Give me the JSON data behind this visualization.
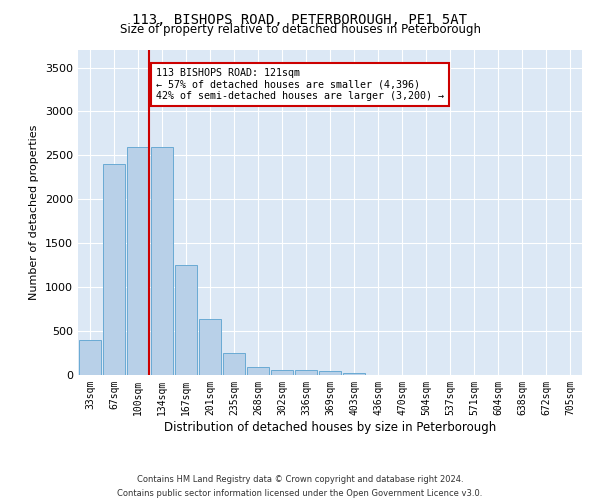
{
  "title": "113, BISHOPS ROAD, PETERBOROUGH, PE1 5AT",
  "subtitle": "Size of property relative to detached houses in Peterborough",
  "xlabel": "Distribution of detached houses by size in Peterborough",
  "ylabel": "Number of detached properties",
  "bar_labels": [
    "33sqm",
    "67sqm",
    "100sqm",
    "134sqm",
    "167sqm",
    "201sqm",
    "235sqm",
    "268sqm",
    "302sqm",
    "336sqm",
    "369sqm",
    "403sqm",
    "436sqm",
    "470sqm",
    "504sqm",
    "537sqm",
    "571sqm",
    "604sqm",
    "638sqm",
    "672sqm",
    "705sqm"
  ],
  "bar_values": [
    400,
    2400,
    2600,
    2600,
    1250,
    640,
    250,
    90,
    55,
    55,
    40,
    25,
    0,
    0,
    0,
    0,
    0,
    0,
    0,
    0,
    0
  ],
  "bar_color": "#b8d0e8",
  "bar_edge_color": "#6aaad4",
  "property_line_color": "#cc0000",
  "annotation_text": "113 BISHOPS ROAD: 121sqm\n← 57% of detached houses are smaller (4,396)\n42% of semi-detached houses are larger (3,200) →",
  "annotation_box_color": "#ffffff",
  "annotation_box_edge": "#cc0000",
  "ylim": [
    0,
    3700
  ],
  "yticks": [
    0,
    500,
    1000,
    1500,
    2000,
    2500,
    3000,
    3500
  ],
  "background_color": "#dce8f5",
  "footer_line1": "Contains HM Land Registry data © Crown copyright and database right 2024.",
  "footer_line2": "Contains public sector information licensed under the Open Government Licence v3.0."
}
